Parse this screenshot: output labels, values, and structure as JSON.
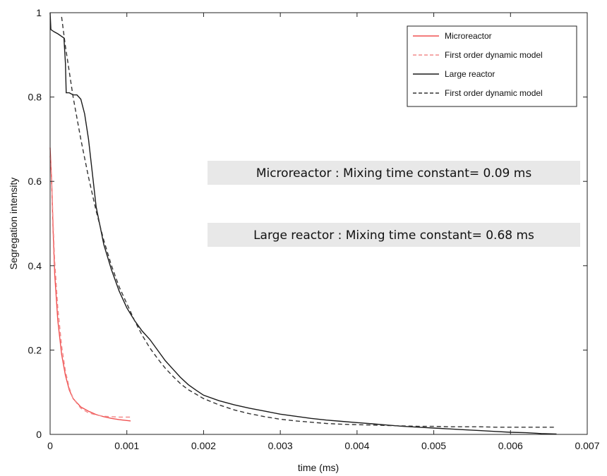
{
  "chart_data": {
    "type": "line",
    "title": "",
    "xlabel": "time (ms)",
    "ylabel": "Segregation intensity",
    "xlim": [
      0,
      0.007
    ],
    "ylim": [
      0,
      1
    ],
    "xticks": [
      0,
      0.001,
      0.002,
      0.003,
      0.004,
      0.005,
      0.006,
      0.007
    ],
    "xtick_labels": [
      "0",
      "0.001",
      "0.002",
      "0.003",
      "0.004",
      "0.005",
      "0.006",
      "0.007"
    ],
    "yticks": [
      0,
      0.2,
      0.4,
      0.6,
      0.8,
      1
    ],
    "ytick_labels": [
      "0",
      "0.2",
      "0.4",
      "0.6",
      "0.8",
      "1"
    ],
    "grid": false,
    "legend_position": "top-right",
    "series": [
      {
        "name": "Microreactor",
        "color": "#f05050",
        "dash": "solid",
        "x": [
          0,
          2e-05,
          4e-05,
          6e-05,
          0.0001,
          0.00015,
          0.0002,
          0.00025,
          0.0003,
          0.0004,
          0.0005,
          0.0006,
          0.0007,
          0.0008,
          0.0009,
          0.00105
        ],
        "y": [
          0.68,
          0.6,
          0.48,
          0.38,
          0.27,
          0.19,
          0.14,
          0.105,
          0.085,
          0.065,
          0.055,
          0.047,
          0.042,
          0.038,
          0.035,
          0.032
        ]
      },
      {
        "name": "First order dynamic model",
        "color": "#f28a8a",
        "dash": "dashed",
        "x": [
          0,
          2e-05,
          4e-05,
          6e-05,
          0.0001,
          0.00015,
          0.0002,
          0.00025,
          0.0003,
          0.0004,
          0.0005,
          0.0006,
          0.0007,
          0.0008,
          0.0009,
          0.00105
        ],
        "y": [
          0.66,
          0.6,
          0.5,
          0.41,
          0.3,
          0.21,
          0.15,
          0.11,
          0.085,
          0.062,
          0.051,
          0.046,
          0.043,
          0.042,
          0.041,
          0.041
        ]
      },
      {
        "name": "Large reactor",
        "color": "#1a1a1a",
        "dash": "solid",
        "x": [
          0,
          1e-05,
          5e-05,
          0.0001,
          0.00018,
          0.0002,
          0.00021,
          0.00025,
          0.0003,
          0.00035,
          0.0004,
          0.00045,
          0.0005,
          0.00055,
          0.0006,
          0.0007,
          0.0008,
          0.0009,
          0.001,
          0.0011,
          0.0012,
          0.0013,
          0.0014,
          0.0015,
          0.0016,
          0.0017,
          0.0018,
          0.0019,
          0.002,
          0.0022,
          0.0024,
          0.0026,
          0.0028,
          0.003,
          0.0032,
          0.0034,
          0.0036,
          0.0038,
          0.004,
          0.0042,
          0.0044,
          0.0046,
          0.0048,
          0.005,
          0.0052,
          0.0054,
          0.0056,
          0.0058,
          0.006,
          0.0062,
          0.0064,
          0.0066
        ],
        "y": [
          1.0,
          0.96,
          0.955,
          0.95,
          0.94,
          0.88,
          0.81,
          0.81,
          0.805,
          0.805,
          0.795,
          0.76,
          0.7,
          0.62,
          0.54,
          0.45,
          0.39,
          0.34,
          0.3,
          0.27,
          0.245,
          0.225,
          0.2,
          0.175,
          0.155,
          0.135,
          0.118,
          0.105,
          0.093,
          0.08,
          0.07,
          0.062,
          0.055,
          0.048,
          0.043,
          0.038,
          0.034,
          0.031,
          0.028,
          0.025,
          0.022,
          0.019,
          0.017,
          0.015,
          0.013,
          0.011,
          0.009,
          0.007,
          0.005,
          0.004,
          0.002,
          0.001
        ]
      },
      {
        "name": "First order dynamic model",
        "color": "#333333",
        "dash": "dashed",
        "x": [
          0.00015,
          0.0002,
          0.0003,
          0.0004,
          0.0005,
          0.0006,
          0.0007,
          0.0008,
          0.0009,
          0.001,
          0.0011,
          0.0012,
          0.0013,
          0.0014,
          0.0015,
          0.0016,
          0.0017,
          0.0018,
          0.002,
          0.0022,
          0.0024,
          0.0026,
          0.0028,
          0.003,
          0.0032,
          0.0034,
          0.0036,
          0.0038,
          0.004,
          0.0042,
          0.0044,
          0.0046,
          0.0048,
          0.005,
          0.0052,
          0.0054,
          0.0056,
          0.0058,
          0.006,
          0.0062,
          0.0064,
          0.0066
        ],
        "y": [
          0.99,
          0.92,
          0.8,
          0.7,
          0.61,
          0.53,
          0.46,
          0.4,
          0.35,
          0.31,
          0.27,
          0.235,
          0.205,
          0.18,
          0.157,
          0.138,
          0.12,
          0.106,
          0.085,
          0.07,
          0.058,
          0.049,
          0.042,
          0.036,
          0.032,
          0.029,
          0.026,
          0.024,
          0.023,
          0.022,
          0.021,
          0.02,
          0.019,
          0.019,
          0.018,
          0.018,
          0.018,
          0.017,
          0.017,
          0.017,
          0.017,
          0.017
        ]
      }
    ],
    "annotations": [
      "Microreactor : Mixing time constant= 0.09 ms",
      "Large reactor :  Mixing time constant= 0.68 ms"
    ]
  }
}
